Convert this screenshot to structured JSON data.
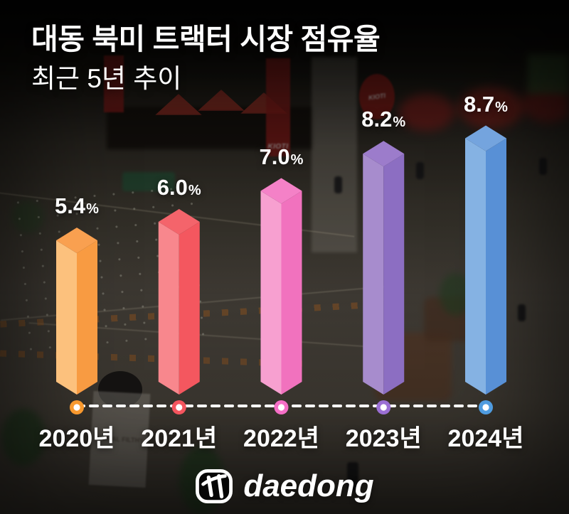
{
  "header": {
    "title": "대동 북미 트랙터 시장 점유율",
    "subtitle": "최근 5년 추이"
  },
  "chart_data": {
    "type": "bar",
    "title": "대동 북미 트랙터 시장 점유율",
    "subtitle": "최근 5년 추이",
    "categories": [
      "2020년",
      "2021년",
      "2022년",
      "2023년",
      "2024년"
    ],
    "values": [
      5.4,
      6.0,
      7.0,
      8.2,
      8.7
    ],
    "unit": "%",
    "value_labels": [
      "5.4%",
      "6.0%",
      "7.0%",
      "8.2%",
      "8.7%"
    ],
    "ylim": [
      0,
      9.2
    ],
    "legend": "none",
    "grid": "off",
    "bar_style": "3d-prism",
    "axis": {
      "style": "dashed-baseline-with-dot-markers",
      "color": "#ffffff"
    },
    "bar_colors": [
      {
        "light": "#fcc17d",
        "dark": "#f89b42",
        "top": "#f9a050",
        "marker": "#f8992e"
      },
      {
        "light": "#f8878d",
        "dark": "#f4575f",
        "top": "#f4646b",
        "marker": "#f4555e"
      },
      {
        "light": "#f7a0d0",
        "dark": "#f172be",
        "top": "#f481c7",
        "marker": "#f56ec6"
      },
      {
        "light": "#a78ccd",
        "dark": "#8c6ec2",
        "top": "#9c7ccb",
        "marker": "#9b6fd4"
      },
      {
        "light": "#85b2e3",
        "dark": "#5890d6",
        "top": "#74a4de",
        "marker": "#4f9ce0"
      }
    ],
    "text_color": "#ffffff"
  },
  "background": {
    "description": "darkened photo of indoor KIOTI tractor trade-show hall",
    "banner_text": "KIOTI",
    "disc_text": "KIOTI",
    "stand_text": "ANIMAL FILTHY"
  },
  "footer": {
    "logo_text": "daedong"
  }
}
